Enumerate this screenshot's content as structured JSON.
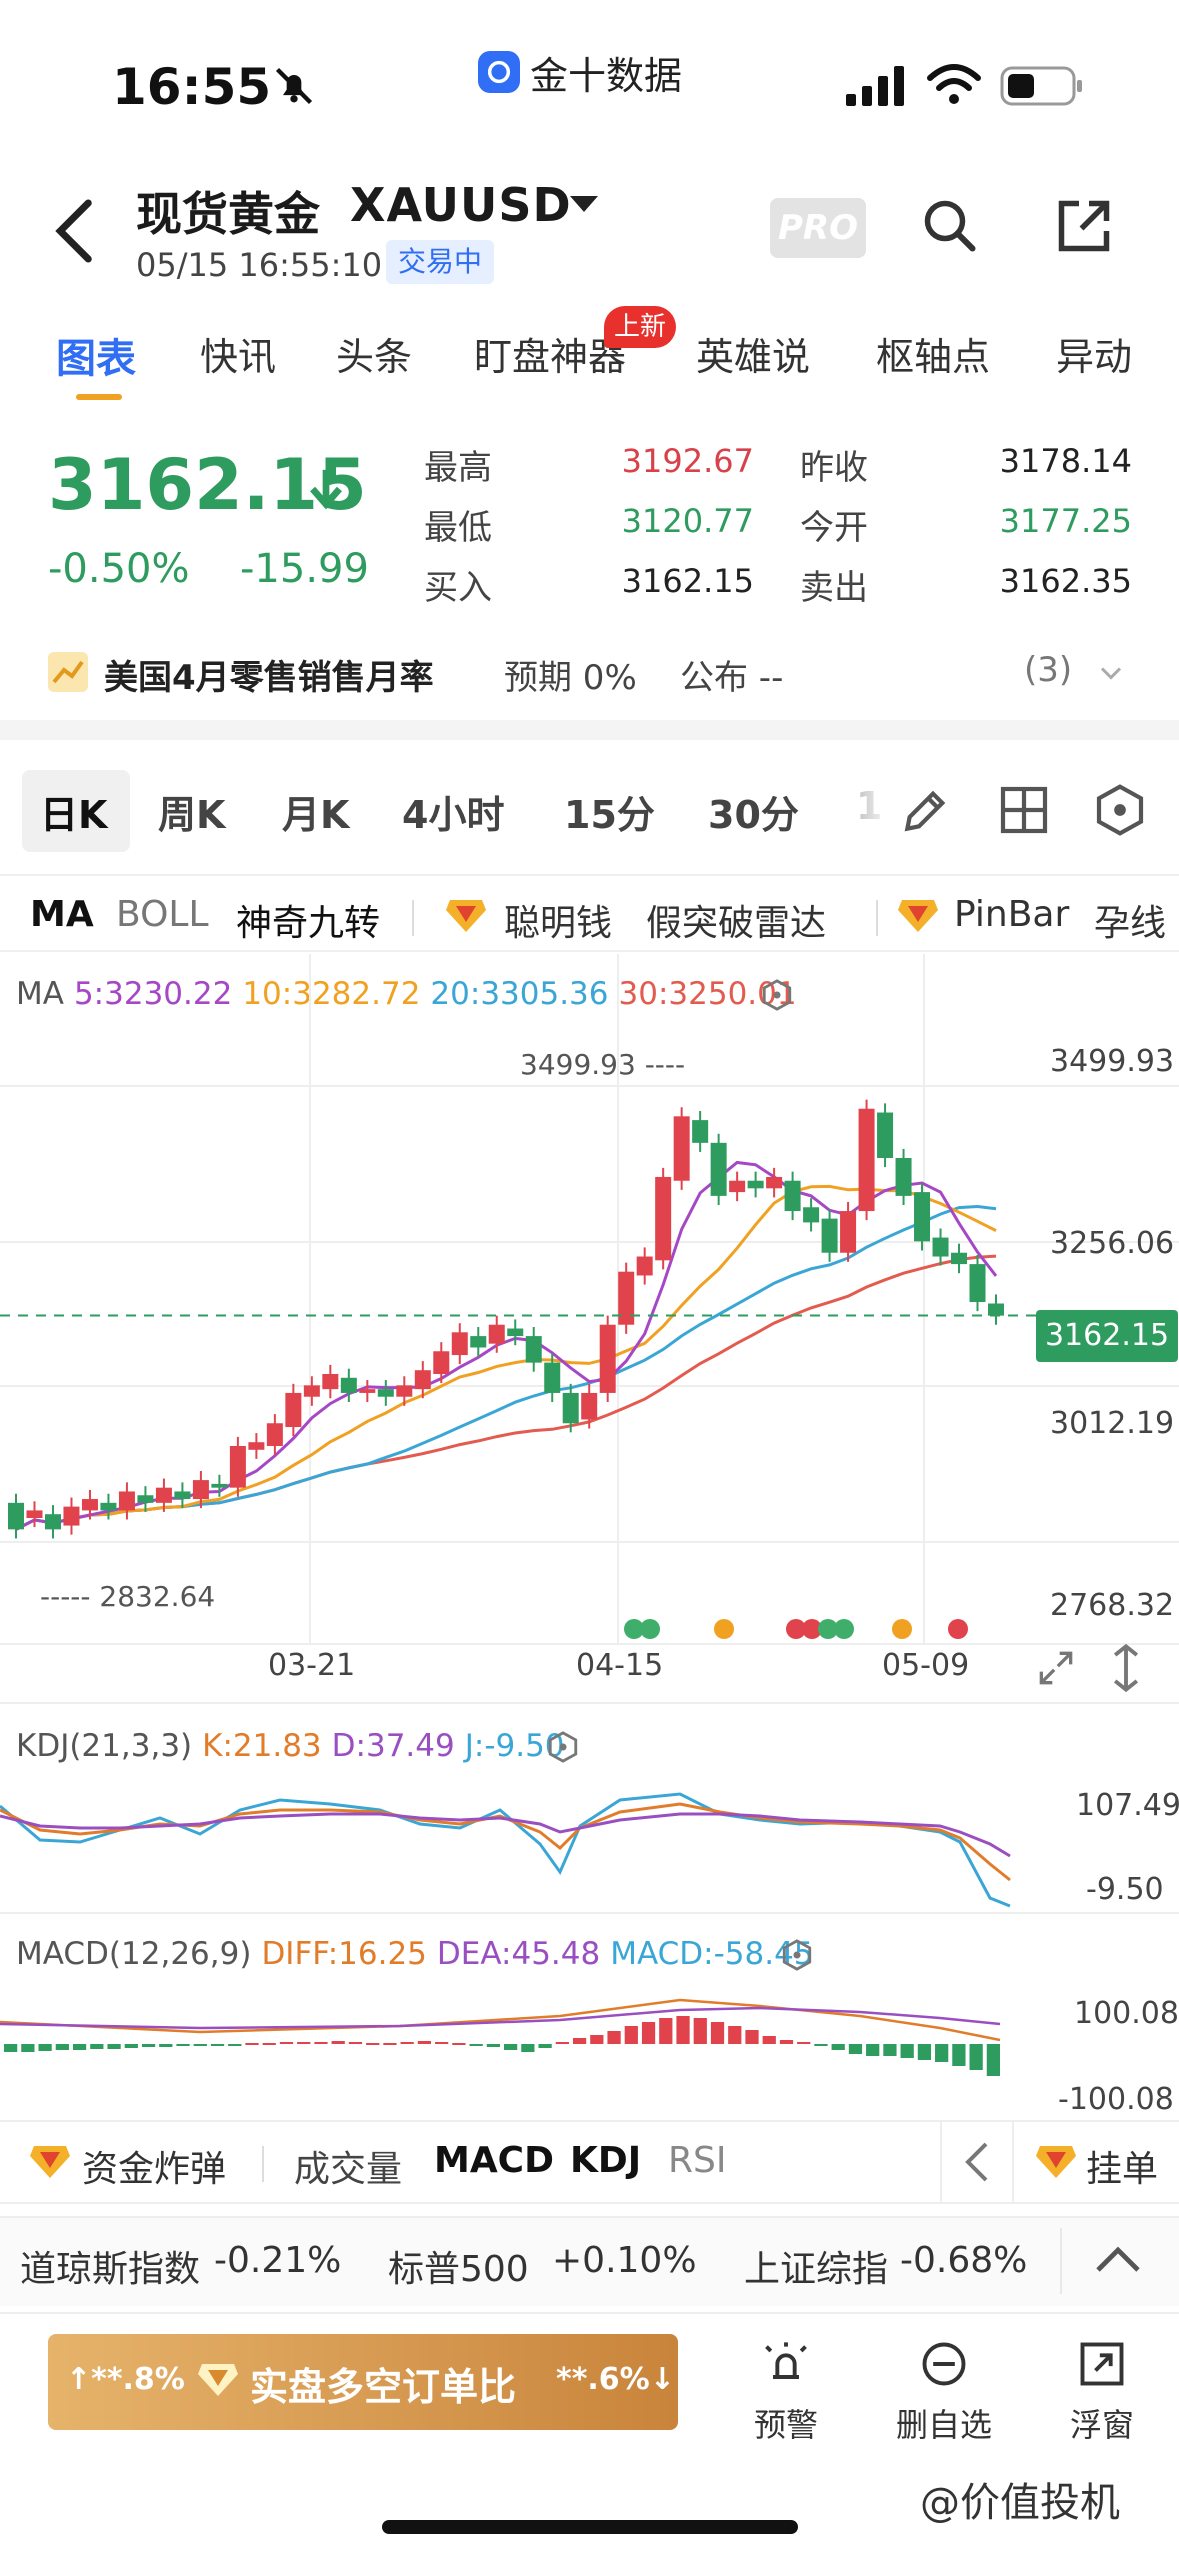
{
  "status_bar": {
    "time": "16:55",
    "app_name": "金十数据"
  },
  "header": {
    "name_cn": "现货黄金",
    "code": "XAUUSD",
    "timestamp": "05/15 16:55:10",
    "trade_status": "交易中",
    "pro_label": "PRO"
  },
  "tabs": [
    {
      "label": "图表",
      "active": true
    },
    {
      "label": "快讯"
    },
    {
      "label": "头条"
    },
    {
      "label": "盯盘神器",
      "badge": "上新"
    },
    {
      "label": "英雄说"
    },
    {
      "label": "枢轴点"
    },
    {
      "label": "异动"
    }
  ],
  "quote": {
    "price": "3162.15",
    "arrow": "down",
    "change_pct": "-0.50%",
    "change_abs": "-15.99",
    "high_label": "最高",
    "high": "3192.67",
    "low_label": "最低",
    "low": "3120.77",
    "buy_label": "买入",
    "buy": "3162.15",
    "prev_close_label": "昨收",
    "prev_close": "3178.14",
    "open_label": "今开",
    "open": "3177.25",
    "sell_label": "卖出",
    "sell": "3162.35"
  },
  "event": {
    "name": "美国4月零售销售月率",
    "expect": "预期 0%",
    "publish": "公布 --",
    "count": "(3)"
  },
  "periods": [
    "日K",
    "周K",
    "月K",
    "4小时",
    "15分",
    "30分",
    "1"
  ],
  "indicators": {
    "ma": "MA",
    "boll": "BOLL",
    "nine": "神奇九转",
    "smart": "聪明钱",
    "fake": "假突破雷达",
    "pinbar": "PinBar",
    "pregnant": "孕线"
  },
  "chart_data": {
    "type": "candlestick",
    "ma_legend": {
      "title": "MA",
      "ma5": "5:3230.22",
      "ma10": "10:3282.72",
      "ma20": "20:3305.36",
      "ma30": "30:3250.01"
    },
    "price_axis": [
      "3499.93",
      "3256.06",
      "3012.19",
      "2768.32"
    ],
    "current_price": "3162.15",
    "high_marker": "3499.93",
    "low_marker": "2832.64",
    "date_labels": [
      "03-21",
      "04-15",
      "05-09"
    ],
    "ylim": [
      2768.32,
      3560
    ],
    "colors": {
      "up": "#e0434c",
      "down": "#2e9b5f",
      "ma5": "#a647c6",
      "ma10": "#f0a122",
      "ma20": "#3aa6d6",
      "ma30": "#e35b4e"
    },
    "candles": [
      [
        2915,
        2880
      ],
      [
        2895,
        2905
      ],
      [
        2900,
        2880
      ],
      [
        2885,
        2910
      ],
      [
        2905,
        2920
      ],
      [
        2915,
        2905
      ],
      [
        2905,
        2930
      ],
      [
        2925,
        2915
      ],
      [
        2915,
        2935
      ],
      [
        2930,
        2920
      ],
      [
        2920,
        2945
      ],
      [
        2940,
        2935
      ],
      [
        2935,
        2990
      ],
      [
        2985,
        2995
      ],
      [
        2990,
        3020
      ],
      [
        3015,
        3060
      ],
      [
        3055,
        3070
      ],
      [
        3065,
        3085
      ],
      [
        3080,
        3060
      ],
      [
        3060,
        3065
      ],
      [
        3065,
        3055
      ],
      [
        3055,
        3070
      ],
      [
        3065,
        3090
      ],
      [
        3085,
        3115
      ],
      [
        3110,
        3140
      ],
      [
        3135,
        3120
      ],
      [
        3125,
        3150
      ],
      [
        3145,
        3135
      ],
      [
        3135,
        3100
      ],
      [
        3100,
        3060
      ],
      [
        3060,
        3020
      ],
      [
        3025,
        3060
      ],
      [
        3060,
        3150
      ],
      [
        3150,
        3220
      ],
      [
        3215,
        3240
      ],
      [
        3235,
        3345
      ],
      [
        3340,
        3425
      ],
      [
        3420,
        3390
      ],
      [
        3390,
        3320
      ],
      [
        3325,
        3340
      ],
      [
        3340,
        3330
      ],
      [
        3330,
        3345
      ],
      [
        3340,
        3300
      ],
      [
        3305,
        3285
      ],
      [
        3290,
        3245
      ],
      [
        3245,
        3300
      ],
      [
        3300,
        3435
      ],
      [
        3430,
        3370
      ],
      [
        3370,
        3320
      ],
      [
        3325,
        3260
      ],
      [
        3265,
        3240
      ],
      [
        3245,
        3230
      ],
      [
        3230,
        3180
      ],
      [
        3178,
        3162
      ]
    ],
    "signals": [
      "green",
      "green",
      "orange",
      "red",
      "red",
      "green",
      "green",
      "orange",
      "red"
    ]
  },
  "kdj": {
    "title": "KDJ(21,3,3)",
    "k": "K:21.83",
    "d": "D:37.49",
    "j": "J:-9.50",
    "axis_top": "107.49",
    "axis_bottom": "-9.50"
  },
  "macd": {
    "title": "MACD(12,26,9)",
    "diff": "DIFF:16.25",
    "dea": "DEA:45.48",
    "macd": "MACD:-58.45",
    "axis_top": "100.08",
    "axis_bottom": "-100.08"
  },
  "tools": {
    "bomb": "资金炸弹",
    "volume": "成交量",
    "macd": "MACD",
    "kdj": "KDJ",
    "rsi": "RSI",
    "order": "挂单"
  },
  "indices": [
    {
      "name": "道琼斯指数",
      "change": "-0.21%",
      "dir": "down"
    },
    {
      "name": "标普500",
      "change": "+0.10%",
      "dir": "up"
    },
    {
      "name": "上证综指",
      "change": "-0.68%",
      "dir": "down"
    }
  ],
  "bottom": {
    "promo_left": "**.8%",
    "promo_text": "实盘多空订单比",
    "promo_right": "**.6%",
    "alert": "预警",
    "remove": "删自选",
    "float": "浮窗",
    "watermark": "@价值投机"
  }
}
